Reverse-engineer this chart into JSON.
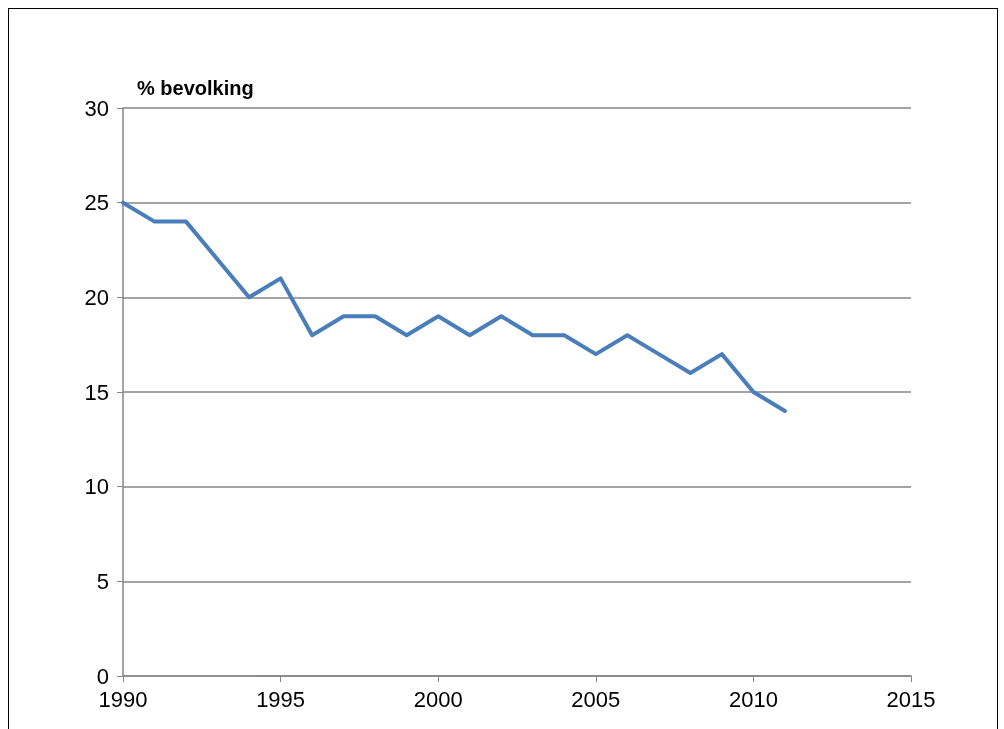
{
  "chart_data": {
    "type": "line",
    "ylabel": "% bevolking",
    "x": [
      1990,
      1991,
      1992,
      1993,
      1994,
      1995,
      1996,
      1997,
      1998,
      1999,
      2000,
      2001,
      2002,
      2003,
      2004,
      2005,
      2006,
      2007,
      2008,
      2009,
      2010,
      2011
    ],
    "series": [
      {
        "color": "#4a7ebb",
        "values": [
          25,
          24,
          24,
          22,
          20,
          21,
          18,
          19,
          19,
          18,
          19,
          18,
          19,
          18,
          18,
          17,
          18,
          17,
          16,
          17,
          15,
          14
        ]
      }
    ],
    "xlim": [
      1990,
      2015
    ],
    "xticks": [
      1990,
      1995,
      2000,
      2005,
      2010,
      2015
    ],
    "ylim": [
      0,
      30
    ],
    "yticks": [
      0,
      5,
      10,
      15,
      20,
      25,
      30
    ],
    "grid": "y",
    "marker": "none",
    "line_style": "solid"
  }
}
